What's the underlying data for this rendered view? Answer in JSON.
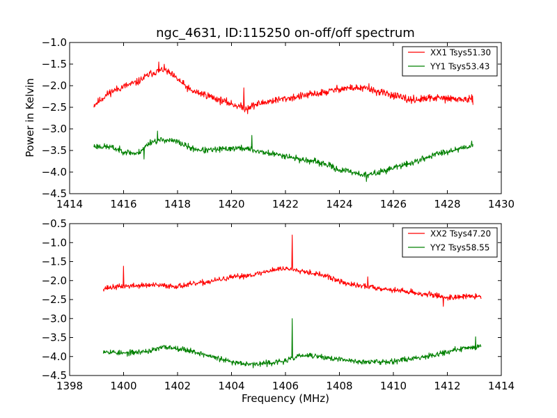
{
  "chart_data": [
    {
      "type": "line",
      "title": "ngc_4631, ID:115250 on-off/off spectrum",
      "xlabel": "",
      "ylabel": "Power in Kelvin",
      "xlim": [
        1414,
        1430
      ],
      "ylim": [
        -4.5,
        -1.0
      ],
      "x_ticks": [
        "1414",
        "1416",
        "1418",
        "1420",
        "1422",
        "1424",
        "1426",
        "1428",
        "1430"
      ],
      "y_ticks": [
        "−1.0",
        "−1.5",
        "−2.0",
        "−2.5",
        "−3.0",
        "−3.5",
        "−4.0",
        "−4.5"
      ],
      "legend_position": "top-right",
      "x_range": [
        1414.9,
        1428.95
      ],
      "series": [
        {
          "name": "XX1 Tsys51.30",
          "color": "#ff0000",
          "noise": 0.06,
          "seed": 11,
          "profile": [
            [
              1414.9,
              -2.45
            ],
            [
              1415.5,
              -2.15
            ],
            [
              1416.0,
              -2.02
            ],
            [
              1416.5,
              -1.92
            ],
            [
              1417.0,
              -1.72
            ],
            [
              1417.5,
              -1.62
            ],
            [
              1418.0,
              -1.85
            ],
            [
              1418.5,
              -2.12
            ],
            [
              1419.0,
              -2.2
            ],
            [
              1419.5,
              -2.32
            ],
            [
              1420.0,
              -2.42
            ],
            [
              1420.5,
              -2.52
            ],
            [
              1421.0,
              -2.42
            ],
            [
              1421.5,
              -2.35
            ],
            [
              1422.0,
              -2.3
            ],
            [
              1422.5,
              -2.25
            ],
            [
              1423.0,
              -2.2
            ],
            [
              1423.5,
              -2.15
            ],
            [
              1424.0,
              -2.07
            ],
            [
              1424.5,
              -2.05
            ],
            [
              1425.0,
              -2.07
            ],
            [
              1425.5,
              -2.15
            ],
            [
              1426.0,
              -2.22
            ],
            [
              1426.5,
              -2.32
            ],
            [
              1427.0,
              -2.32
            ],
            [
              1427.5,
              -2.28
            ],
            [
              1428.0,
              -2.3
            ],
            [
              1428.95,
              -2.33
            ]
          ],
          "spikes": [
            [
              1417.3,
              -1.45
            ],
            [
              1420.45,
              -2.05
            ],
            [
              1420.6,
              -2.65
            ],
            [
              1425.1,
              -1.95
            ]
          ]
        },
        {
          "name": "YY1 Tsys53.43",
          "color": "#008000",
          "noise": 0.05,
          "seed": 23,
          "profile": [
            [
              1414.9,
              -3.4
            ],
            [
              1415.5,
              -3.42
            ],
            [
              1416.0,
              -3.52
            ],
            [
              1416.5,
              -3.58
            ],
            [
              1417.0,
              -3.3
            ],
            [
              1417.5,
              -3.25
            ],
            [
              1418.0,
              -3.3
            ],
            [
              1418.5,
              -3.45
            ],
            [
              1419.0,
              -3.5
            ],
            [
              1419.5,
              -3.48
            ],
            [
              1420.0,
              -3.45
            ],
            [
              1420.5,
              -3.45
            ],
            [
              1421.0,
              -3.52
            ],
            [
              1421.5,
              -3.58
            ],
            [
              1422.0,
              -3.62
            ],
            [
              1422.5,
              -3.7
            ],
            [
              1423.0,
              -3.75
            ],
            [
              1423.5,
              -3.82
            ],
            [
              1424.0,
              -3.95
            ],
            [
              1424.5,
              -4.0
            ],
            [
              1425.0,
              -4.08
            ],
            [
              1425.5,
              -4.0
            ],
            [
              1426.0,
              -3.9
            ],
            [
              1426.5,
              -3.82
            ],
            [
              1427.0,
              -3.72
            ],
            [
              1427.5,
              -3.6
            ],
            [
              1428.0,
              -3.52
            ],
            [
              1428.95,
              -3.38
            ]
          ],
          "spikes": [
            [
              1417.25,
              -3.05
            ],
            [
              1416.75,
              -3.7
            ],
            [
              1420.75,
              -3.15
            ],
            [
              1425.0,
              -4.22
            ],
            [
              1428.9,
              -3.28
            ]
          ]
        }
      ]
    },
    {
      "type": "line",
      "title": "",
      "xlabel": "Frequency (MHz)",
      "ylabel": "",
      "xlim": [
        1398,
        1414
      ],
      "ylim": [
        -4.5,
        -0.5
      ],
      "x_ticks": [
        "1398",
        "1400",
        "1402",
        "1404",
        "1406",
        "1408",
        "1410",
        "1412",
        "1414"
      ],
      "y_ticks": [
        "−0.5",
        "−1.0",
        "−1.5",
        "−2.0",
        "−2.5",
        "−3.0",
        "−3.5",
        "−4.0",
        "−4.5"
      ],
      "legend_position": "top-right",
      "x_range": [
        1399.25,
        1413.25
      ],
      "series": [
        {
          "name": "XX2 Tsys47.20",
          "color": "#ff0000",
          "noise": 0.05,
          "seed": 37,
          "profile": [
            [
              1399.25,
              -2.2
            ],
            [
              1400.0,
              -2.15
            ],
            [
              1401.0,
              -2.12
            ],
            [
              1402.0,
              -2.15
            ],
            [
              1403.0,
              -2.05
            ],
            [
              1404.0,
              -1.92
            ],
            [
              1405.0,
              -1.82
            ],
            [
              1405.5,
              -1.72
            ],
            [
              1406.0,
              -1.68
            ],
            [
              1406.5,
              -1.72
            ],
            [
              1407.0,
              -1.8
            ],
            [
              1407.5,
              -1.88
            ],
            [
              1408.0,
              -2.02
            ],
            [
              1408.5,
              -2.12
            ],
            [
              1409.0,
              -2.15
            ],
            [
              1409.5,
              -2.2
            ],
            [
              1410.0,
              -2.25
            ],
            [
              1410.5,
              -2.28
            ],
            [
              1411.0,
              -2.35
            ],
            [
              1411.5,
              -2.38
            ],
            [
              1412.0,
              -2.45
            ],
            [
              1412.5,
              -2.42
            ],
            [
              1413.25,
              -2.42
            ]
          ],
          "spikes": [
            [
              1400.0,
              -1.62
            ],
            [
              1406.25,
              -0.8
            ],
            [
              1409.05,
              -1.9
            ],
            [
              1411.85,
              -2.68
            ]
          ]
        },
        {
          "name": "YY2 Tsys58.55",
          "color": "#008000",
          "noise": 0.05,
          "seed": 53,
          "profile": [
            [
              1399.25,
              -3.85
            ],
            [
              1400.0,
              -3.92
            ],
            [
              1401.0,
              -3.85
            ],
            [
              1401.5,
              -3.75
            ],
            [
              1402.0,
              -3.78
            ],
            [
              1402.5,
              -3.85
            ],
            [
              1403.0,
              -3.95
            ],
            [
              1404.0,
              -4.15
            ],
            [
              1405.0,
              -4.2
            ],
            [
              1406.0,
              -4.12
            ],
            [
              1406.5,
              -3.98
            ],
            [
              1407.0,
              -3.98
            ],
            [
              1408.0,
              -4.08
            ],
            [
              1409.0,
              -4.15
            ],
            [
              1410.0,
              -4.12
            ],
            [
              1411.0,
              -4.02
            ],
            [
              1412.0,
              -3.88
            ],
            [
              1412.5,
              -3.8
            ],
            [
              1413.25,
              -3.72
            ]
          ],
          "spikes": [
            [
              1406.25,
              -3.0
            ],
            [
              1404.8,
              -4.3
            ],
            [
              1413.05,
              -3.48
            ]
          ]
        }
      ]
    }
  ]
}
